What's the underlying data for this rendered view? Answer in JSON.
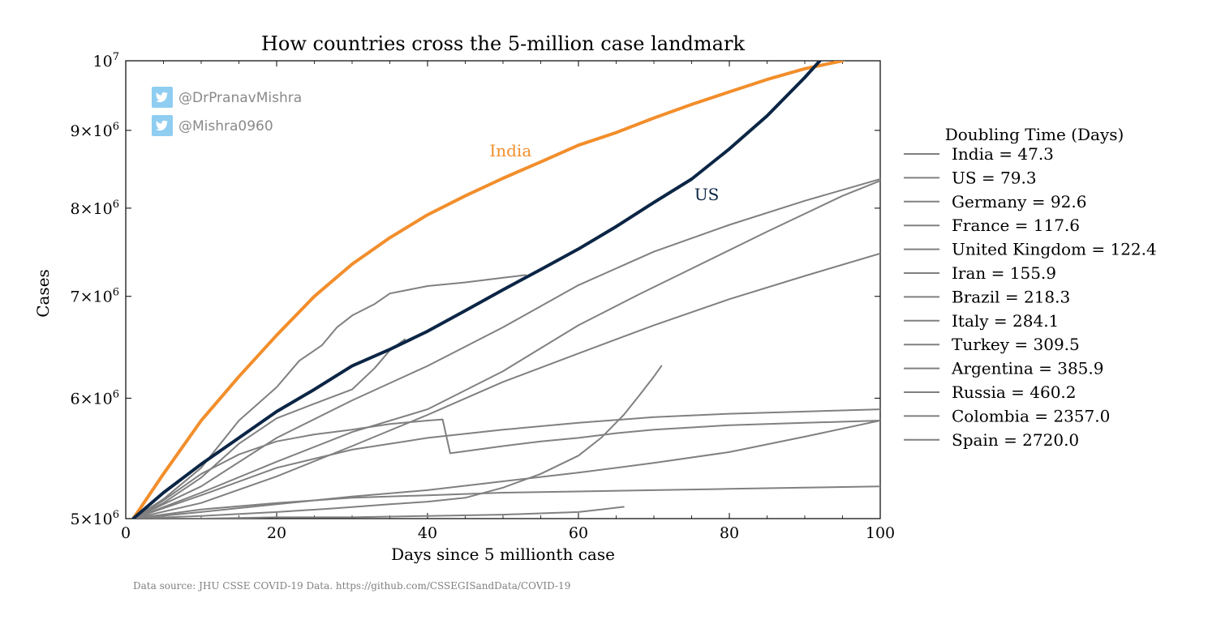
{
  "chart_data": {
    "type": "line",
    "title": "How countries cross the 5-million case landmark",
    "xlabel": "Days since 5 millionth case",
    "ylabel": "Cases",
    "yscale": "log",
    "xlim": [
      0,
      100
    ],
    "ylim": [
      5000000,
      10000000
    ],
    "x_ticks": [
      0,
      20,
      40,
      60,
      80,
      100
    ],
    "y_ticks": [
      {
        "value": 5000000,
        "mantissa": "5",
        "base": "10",
        "exp": "6"
      },
      {
        "value": 6000000,
        "mantissa": "6",
        "base": "10",
        "exp": "6"
      },
      {
        "value": 7000000,
        "mantissa": "7",
        "base": "10",
        "exp": "6"
      },
      {
        "value": 8000000,
        "mantissa": "8",
        "base": "10",
        "exp": "6"
      },
      {
        "value": 9000000,
        "mantissa": "9",
        "base": "10",
        "exp": "6"
      },
      {
        "value": 10000000,
        "mantissa": "",
        "base": "10",
        "exp": "7"
      }
    ],
    "legend_title": "Doubling Time (Days)",
    "legend_entries": [
      "India = 47.3",
      "US = 79.3",
      "Germany = 92.6",
      "France = 117.6",
      "United Kingdom = 122.4",
      "Iran = 155.9",
      "Brazil = 218.3",
      "Italy = 284.1",
      "Turkey = 309.5",
      "Argentina = 385.9",
      "Russia = 460.2",
      "Colombia = 2357.0",
      "Spain = 2720.0"
    ],
    "annotations": [
      {
        "text": "India",
        "x": 51,
        "y": 8650000,
        "color": "#f28e2b"
      },
      {
        "text": "US",
        "x": 77,
        "y": 8100000,
        "color": "#0b2545"
      }
    ],
    "series": [
      {
        "name": "India",
        "color": "#f28e2b",
        "width": 4,
        "x": [
          1,
          5,
          10,
          15,
          20,
          25,
          30,
          35,
          40,
          45,
          50,
          55,
          60,
          65,
          70,
          75,
          80,
          85,
          90,
          95
        ],
        "y": [
          5000000,
          5350000,
          5800000,
          6200000,
          6600000,
          7000000,
          7350000,
          7650000,
          7920000,
          8150000,
          8370000,
          8580000,
          8800000,
          8970000,
          9170000,
          9360000,
          9540000,
          9720000,
          9880000,
          10000000
        ]
      },
      {
        "name": "US",
        "color": "#0b2545",
        "width": 4,
        "x": [
          1,
          5,
          10,
          15,
          20,
          25,
          30,
          35,
          40,
          45,
          50,
          55,
          60,
          65,
          70,
          75,
          80,
          85,
          90,
          92
        ],
        "y": [
          5000000,
          5200000,
          5430000,
          5650000,
          5880000,
          6080000,
          6300000,
          6460000,
          6640000,
          6850000,
          7070000,
          7290000,
          7520000,
          7780000,
          8070000,
          8360000,
          8750000,
          9200000,
          9750000,
          10000000
        ]
      },
      {
        "name": "Germany",
        "color": "#808080",
        "width": 2,
        "x": [
          1,
          10,
          20,
          30,
          40,
          50,
          60,
          70,
          80,
          90,
          100
        ],
        "y": [
          5000000,
          5250000,
          5650000,
          5980000,
          6300000,
          6680000,
          7120000,
          7490000,
          7800000,
          8090000,
          8360000
        ]
      },
      {
        "name": "France",
        "color": "#808080",
        "width": 2,
        "x": [
          1,
          10,
          20,
          30,
          40,
          50,
          60,
          68,
          75,
          85,
          95,
          100
        ],
        "y": [
          5000000,
          5200000,
          5450000,
          5700000,
          5900000,
          6250000,
          6700000,
          7020000,
          7300000,
          7720000,
          8150000,
          8340000
        ]
      },
      {
        "name": "United Kingdom",
        "color": "#808080",
        "width": 2,
        "x": [
          1,
          5,
          10,
          15,
          20,
          23,
          26,
          28,
          30,
          33,
          35,
          40,
          45,
          50,
          53
        ],
        "y": [
          5000000,
          5150000,
          5400000,
          5800000,
          6100000,
          6350000,
          6500000,
          6680000,
          6800000,
          6920000,
          7030000,
          7110000,
          7150000,
          7200000,
          7230000
        ]
      },
      {
        "name": "Iran",
        "color": "#808080",
        "width": 2,
        "x": [
          1,
          10,
          20,
          30,
          40,
          50,
          60,
          70,
          80,
          90,
          100
        ],
        "y": [
          5000000,
          5120000,
          5330000,
          5580000,
          5850000,
          6150000,
          6420000,
          6700000,
          6970000,
          7220000,
          7470000
        ]
      },
      {
        "name": "Brazil",
        "color": "#808080",
        "width": 2,
        "x": [
          1,
          5,
          10,
          15,
          20,
          25,
          30,
          33,
          35,
          37
        ],
        "y": [
          5000000,
          5120000,
          5320000,
          5600000,
          5820000,
          5950000,
          6080000,
          6280000,
          6450000,
          6560000
        ]
      },
      {
        "name": "Italy",
        "color": "#808080",
        "width": 2,
        "x": [
          1,
          10,
          20,
          30,
          40,
          50,
          60,
          70,
          80,
          90,
          100
        ],
        "y": [
          5000000,
          5050000,
          5110000,
          5170000,
          5220000,
          5290000,
          5360000,
          5440000,
          5530000,
          5660000,
          5800000
        ]
      },
      {
        "name": "Turkey",
        "color": "#808080",
        "width": 2,
        "x": [
          1,
          5,
          10,
          15,
          20,
          25,
          30,
          35,
          40,
          42,
          43,
          50,
          55,
          60,
          65,
          70,
          75,
          80,
          90,
          100
        ],
        "y": [
          5000000,
          5140000,
          5350000,
          5510000,
          5620000,
          5680000,
          5720000,
          5770000,
          5800000,
          5810000,
          5520000,
          5580000,
          5620000,
          5650000,
          5690000,
          5720000,
          5740000,
          5760000,
          5780000,
          5800000
        ]
      },
      {
        "name": "Argentina",
        "color": "#808080",
        "width": 2,
        "x": [
          1,
          10,
          20,
          30,
          40,
          50,
          60,
          70,
          80,
          90,
          100
        ],
        "y": [
          5000000,
          5180000,
          5400000,
          5550000,
          5650000,
          5720000,
          5780000,
          5830000,
          5860000,
          5880000,
          5900000
        ]
      },
      {
        "name": "Russia",
        "color": "#808080",
        "width": 2,
        "x": [
          1,
          10,
          20,
          30,
          40,
          50,
          60,
          70,
          80,
          90,
          100
        ],
        "y": [
          5000000,
          5070000,
          5120000,
          5160000,
          5180000,
          5200000,
          5210000,
          5220000,
          5230000,
          5240000,
          5250000
        ]
      },
      {
        "name": "Colombia",
        "color": "#808080",
        "width": 2,
        "x": [
          1,
          10,
          20,
          28,
          35,
          40,
          45,
          50,
          55,
          60,
          63,
          66,
          68,
          70,
          71
        ],
        "y": [
          5000000,
          5020000,
          5050000,
          5080000,
          5110000,
          5130000,
          5160000,
          5240000,
          5350000,
          5500000,
          5650000,
          5850000,
          6020000,
          6200000,
          6300000
        ]
      },
      {
        "name": "Spain",
        "color": "#808080",
        "width": 2,
        "x": [
          1,
          10,
          20,
          30,
          40,
          50,
          55,
          60,
          63,
          66
        ],
        "y": [
          5000000,
          5000000,
          5010000,
          5010000,
          5020000,
          5030000,
          5040000,
          5050000,
          5070000,
          5090000
        ]
      }
    ]
  },
  "watermark": {
    "handles": [
      "@DrPranavMishra",
      "@Mishra0960"
    ],
    "icon": "twitter-bird-icon",
    "icon_color": "#8fcdf1"
  },
  "source": "Data source: JHU CSSE COVID-19 Data. https://github.com/CSSEGISandData/COVID-19"
}
